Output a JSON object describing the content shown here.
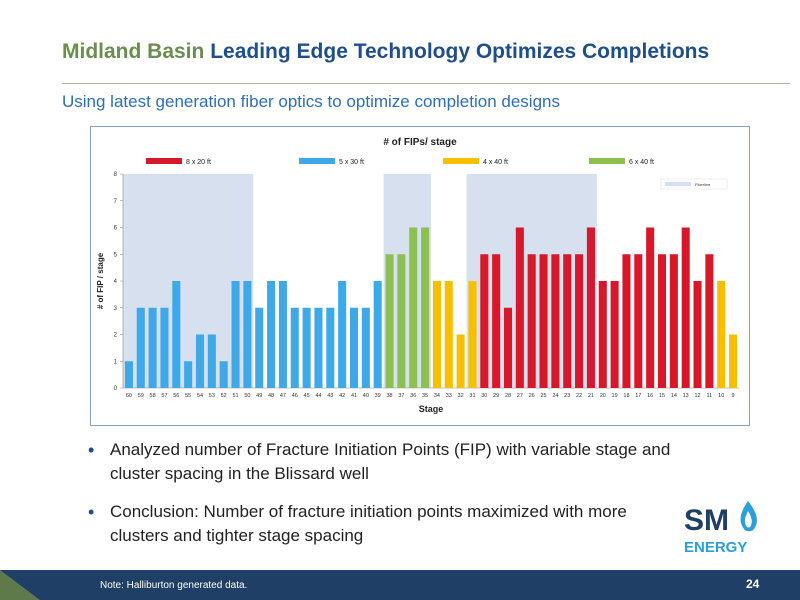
{
  "header": {
    "title_part1": "Midland Basin",
    "title_part2": "Leading Edge Technology Optimizes Completions",
    "subtitle": "Using latest generation fiber optics to optimize completion designs"
  },
  "bullets": [
    "Analyzed number of Fracture Initiation Points (FIP) with variable stage and cluster spacing in the Blissard well",
    "Conclusion: Number of fracture initiation points maximized with more clusters and tighter stage spacing"
  ],
  "footer": {
    "note": "Note: Halliburton generated data.",
    "page_number": "24"
  },
  "logo": {
    "text_top": "SM",
    "text_bottom": "ENERGY",
    "colors": {
      "navy": "#1f3f66",
      "blue": "#2a9fd8"
    }
  },
  "chart_data": {
    "type": "bar",
    "title": "# of FIPs/ stage",
    "xlabel": "Stage",
    "ylabel": "# of FIP / stage",
    "ylim": [
      0,
      8
    ],
    "yticks": [
      0,
      1,
      2,
      3,
      4,
      5,
      6,
      7,
      8
    ],
    "grid": false,
    "legend_position": "top",
    "legend": [
      {
        "label": "8 x 20 ft",
        "color": "#d7182a"
      },
      {
        "label": "5 x 30 ft",
        "color": "#3fa9e8"
      },
      {
        "label": "4 x 40 ft",
        "color": "#f5c000"
      },
      {
        "label": "6 x 40 ft",
        "color": "#8cc152"
      }
    ],
    "shade_legend_label": "Fiberline",
    "shaded_ranges": [
      {
        "from": "60",
        "to": "50"
      },
      {
        "from": "38",
        "to": "35"
      },
      {
        "from": "31",
        "to": "21"
      }
    ],
    "categories": [
      "60",
      "59",
      "58",
      "57",
      "56",
      "55",
      "54",
      "53",
      "52",
      "51",
      "50",
      "49",
      "48",
      "47",
      "46",
      "45",
      "44",
      "43",
      "42",
      "41",
      "40",
      "39",
      "38",
      "37",
      "36",
      "35",
      "34",
      "33",
      "32",
      "31",
      "30",
      "29",
      "28",
      "27",
      "26",
      "25",
      "24",
      "23",
      "22",
      "21",
      "20",
      "19",
      "18",
      "17",
      "16",
      "15",
      "14",
      "13",
      "12",
      "11",
      "10",
      "9"
    ],
    "values": [
      1,
      3,
      3,
      3,
      4,
      1,
      2,
      2,
      1,
      4,
      4,
      3,
      4,
      4,
      3,
      3,
      3,
      3,
      4,
      3,
      3,
      4,
      5,
      5,
      6,
      6,
      4,
      4,
      2,
      4,
      5,
      5,
      3,
      6,
      5,
      5,
      5,
      5,
      5,
      6,
      4,
      4,
      5,
      5,
      6,
      5,
      5,
      6,
      4,
      5,
      4,
      2
    ],
    "bar_colors": [
      "#3fa9e8",
      "#3fa9e8",
      "#3fa9e8",
      "#3fa9e8",
      "#3fa9e8",
      "#3fa9e8",
      "#3fa9e8",
      "#3fa9e8",
      "#3fa9e8",
      "#3fa9e8",
      "#3fa9e8",
      "#3fa9e8",
      "#3fa9e8",
      "#3fa9e8",
      "#3fa9e8",
      "#3fa9e8",
      "#3fa9e8",
      "#3fa9e8",
      "#3fa9e8",
      "#3fa9e8",
      "#3fa9e8",
      "#3fa9e8",
      "#8cc152",
      "#8cc152",
      "#8cc152",
      "#8cc152",
      "#f5c000",
      "#f5c000",
      "#f5c000",
      "#f5c000",
      "#d7182a",
      "#d7182a",
      "#d7182a",
      "#d7182a",
      "#d7182a",
      "#d7182a",
      "#d7182a",
      "#d7182a",
      "#d7182a",
      "#d7182a",
      "#d7182a",
      "#d7182a",
      "#d7182a",
      "#d7182a",
      "#d7182a",
      "#d7182a",
      "#d7182a",
      "#d7182a",
      "#d7182a",
      "#d7182a",
      "#f5c000",
      "#f5c000"
    ],
    "shade_color": "#d6e0ef"
  }
}
